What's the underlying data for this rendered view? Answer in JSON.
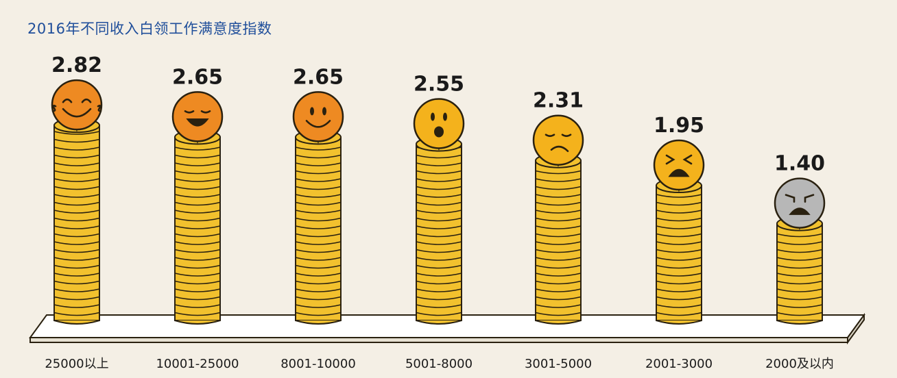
{
  "chart_data": {
    "type": "bar",
    "title": "2016年不同收入白领工作满意度指数",
    "categories": [
      "25000以上",
      "10001-25000",
      "8001-10000",
      "5001-8000",
      "3001-5000",
      "2001-3000",
      "2000及以内"
    ],
    "values": [
      2.82,
      2.65,
      2.65,
      2.55,
      2.31,
      1.95,
      1.4
    ],
    "value_labels": [
      "2.82",
      "2.65",
      "2.65",
      "2.55",
      "2.31",
      "1.95",
      "1.40"
    ],
    "faces": [
      "laughing",
      "grinning-closed-eyes",
      "smiling",
      "surprised",
      "unamused",
      "tired",
      "angry"
    ],
    "ylim": [
      0,
      3
    ],
    "colors": {
      "title": "#1f4e9a",
      "coin": "#f2c12e",
      "coin_edge": "#2a2110",
      "face_orange": "#ee8a22",
      "face_yellow": "#f4b21c",
      "face_gray": "#b7b7b7",
      "background": "#f4efe5"
    }
  }
}
